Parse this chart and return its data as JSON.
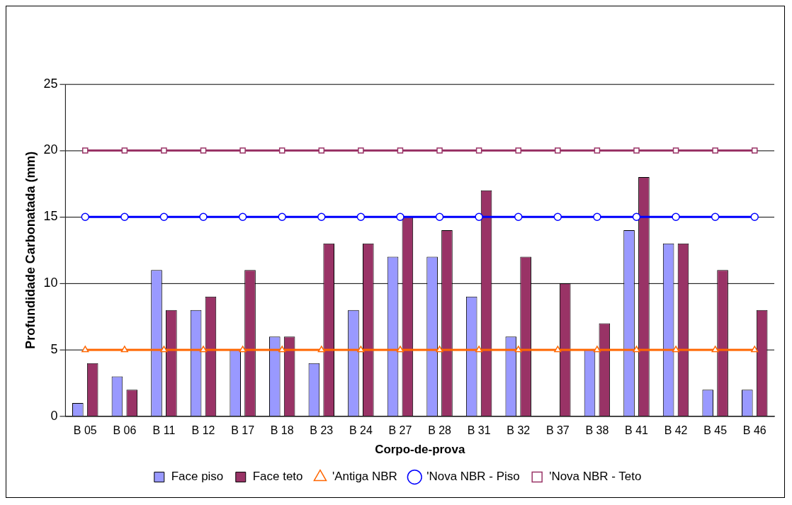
{
  "chart_data": {
    "type": "bar",
    "xlabel": "Corpo-de-prova",
    "ylabel": "Profundidade Carbonatada (mm)",
    "categories": [
      "B 05",
      "B 06",
      "B 11",
      "B 12",
      "B 17",
      "B 18",
      "B 23",
      "B 24",
      "B 27",
      "B 28",
      "B 31",
      "B 32",
      "B 37",
      "B 38",
      "B 41",
      "B 42",
      "B 45",
      "B 46"
    ],
    "series": [
      {
        "name": "Face piso",
        "color": "#9999ff",
        "values": [
          1,
          3,
          11,
          8,
          5,
          6,
          4,
          8,
          12,
          12,
          9,
          6,
          0,
          5,
          14,
          13,
          2,
          2
        ]
      },
      {
        "name": "Face teto",
        "color": "#993366",
        "values": [
          4,
          2,
          8,
          9,
          11,
          6,
          13,
          13,
          15,
          14,
          17,
          12,
          10,
          7,
          18,
          13,
          11,
          8
        ]
      },
      {
        "name": "'Antiga NBR",
        "type": "line",
        "marker": "triangle",
        "color": "#ff6600",
        "values": [
          5,
          5,
          5,
          5,
          5,
          5,
          5,
          5,
          5,
          5,
          5,
          5,
          5,
          5,
          5,
          5,
          5,
          5
        ]
      },
      {
        "name": "'Nova NBR - Piso",
        "type": "line",
        "marker": "circle",
        "color": "#0000ff",
        "values": [
          15,
          15,
          15,
          15,
          15,
          15,
          15,
          15,
          15,
          15,
          15,
          15,
          15,
          15,
          15,
          15,
          15,
          15
        ]
      },
      {
        "name": "'Nova NBR - Teto",
        "type": "line",
        "marker": "square",
        "color": "#993366",
        "values": [
          20,
          20,
          20,
          20,
          20,
          20,
          20,
          20,
          20,
          20,
          20,
          20,
          20,
          20,
          20,
          20,
          20,
          20
        ]
      }
    ],
    "ylim": [
      0,
      25
    ],
    "yticks": [
      0,
      5,
      10,
      15,
      20,
      25
    ],
    "grid": "y",
    "legend": "bottom"
  }
}
